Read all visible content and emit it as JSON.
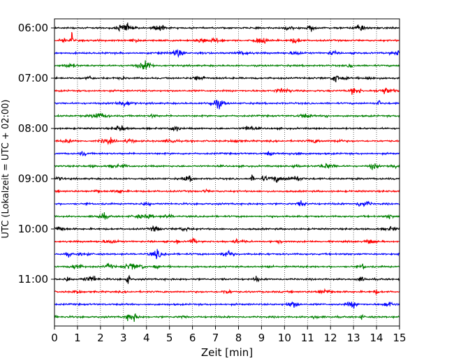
{
  "chart_data": {
    "type": "line",
    "title": "",
    "xlabel": "Zeit  [min]",
    "ylabel": "UTC (Lokalzeit = UTC + 02:00)",
    "xlim": [
      0,
      15
    ],
    "x_ticks": [
      0,
      1,
      2,
      3,
      4,
      5,
      6,
      7,
      8,
      9,
      10,
      11,
      12,
      13,
      14,
      15
    ],
    "y_tick_labels": [
      "06:00",
      "07:00",
      "08:00",
      "09:00",
      "10:00",
      "11:00"
    ],
    "grid": "vertical-dotted",
    "line_colors": [
      "#000000",
      "#ff0000",
      "#0000ff",
      "#008000"
    ],
    "traces": [
      {
        "start": "06:00",
        "color": "#000000"
      },
      {
        "start": "06:15",
        "color": "#ff0000"
      },
      {
        "start": "06:30",
        "color": "#0000ff"
      },
      {
        "start": "06:45",
        "color": "#008000"
      },
      {
        "start": "07:00",
        "color": "#000000"
      },
      {
        "start": "07:15",
        "color": "#ff0000"
      },
      {
        "start": "07:30",
        "color": "#0000ff"
      },
      {
        "start": "07:45",
        "color": "#008000"
      },
      {
        "start": "08:00",
        "color": "#000000"
      },
      {
        "start": "08:15",
        "color": "#ff0000"
      },
      {
        "start": "08:30",
        "color": "#0000ff"
      },
      {
        "start": "08:45",
        "color": "#008000"
      },
      {
        "start": "09:00",
        "color": "#000000"
      },
      {
        "start": "09:15",
        "color": "#ff0000"
      },
      {
        "start": "09:30",
        "color": "#0000ff"
      },
      {
        "start": "09:45",
        "color": "#008000"
      },
      {
        "start": "10:00",
        "color": "#000000"
      },
      {
        "start": "10:15",
        "color": "#ff0000"
      },
      {
        "start": "10:30",
        "color": "#0000ff"
      },
      {
        "start": "10:45",
        "color": "#008000"
      },
      {
        "start": "11:00",
        "color": "#000000"
      },
      {
        "start": "11:15",
        "color": "#ff0000"
      },
      {
        "start": "11:30",
        "color": "#0000ff"
      },
      {
        "start": "11:45",
        "color": "#008000"
      }
    ],
    "events": [
      {
        "trace": "06:15",
        "x": 0.75,
        "amplitude": "large"
      },
      {
        "trace": "11:00",
        "x": 3.2,
        "amplitude": "large"
      },
      {
        "trace": "07:30",
        "x": 14.1,
        "amplitude": "medium"
      },
      {
        "trace": "09:00",
        "x": 8.6,
        "amplitude": "medium"
      }
    ]
  }
}
